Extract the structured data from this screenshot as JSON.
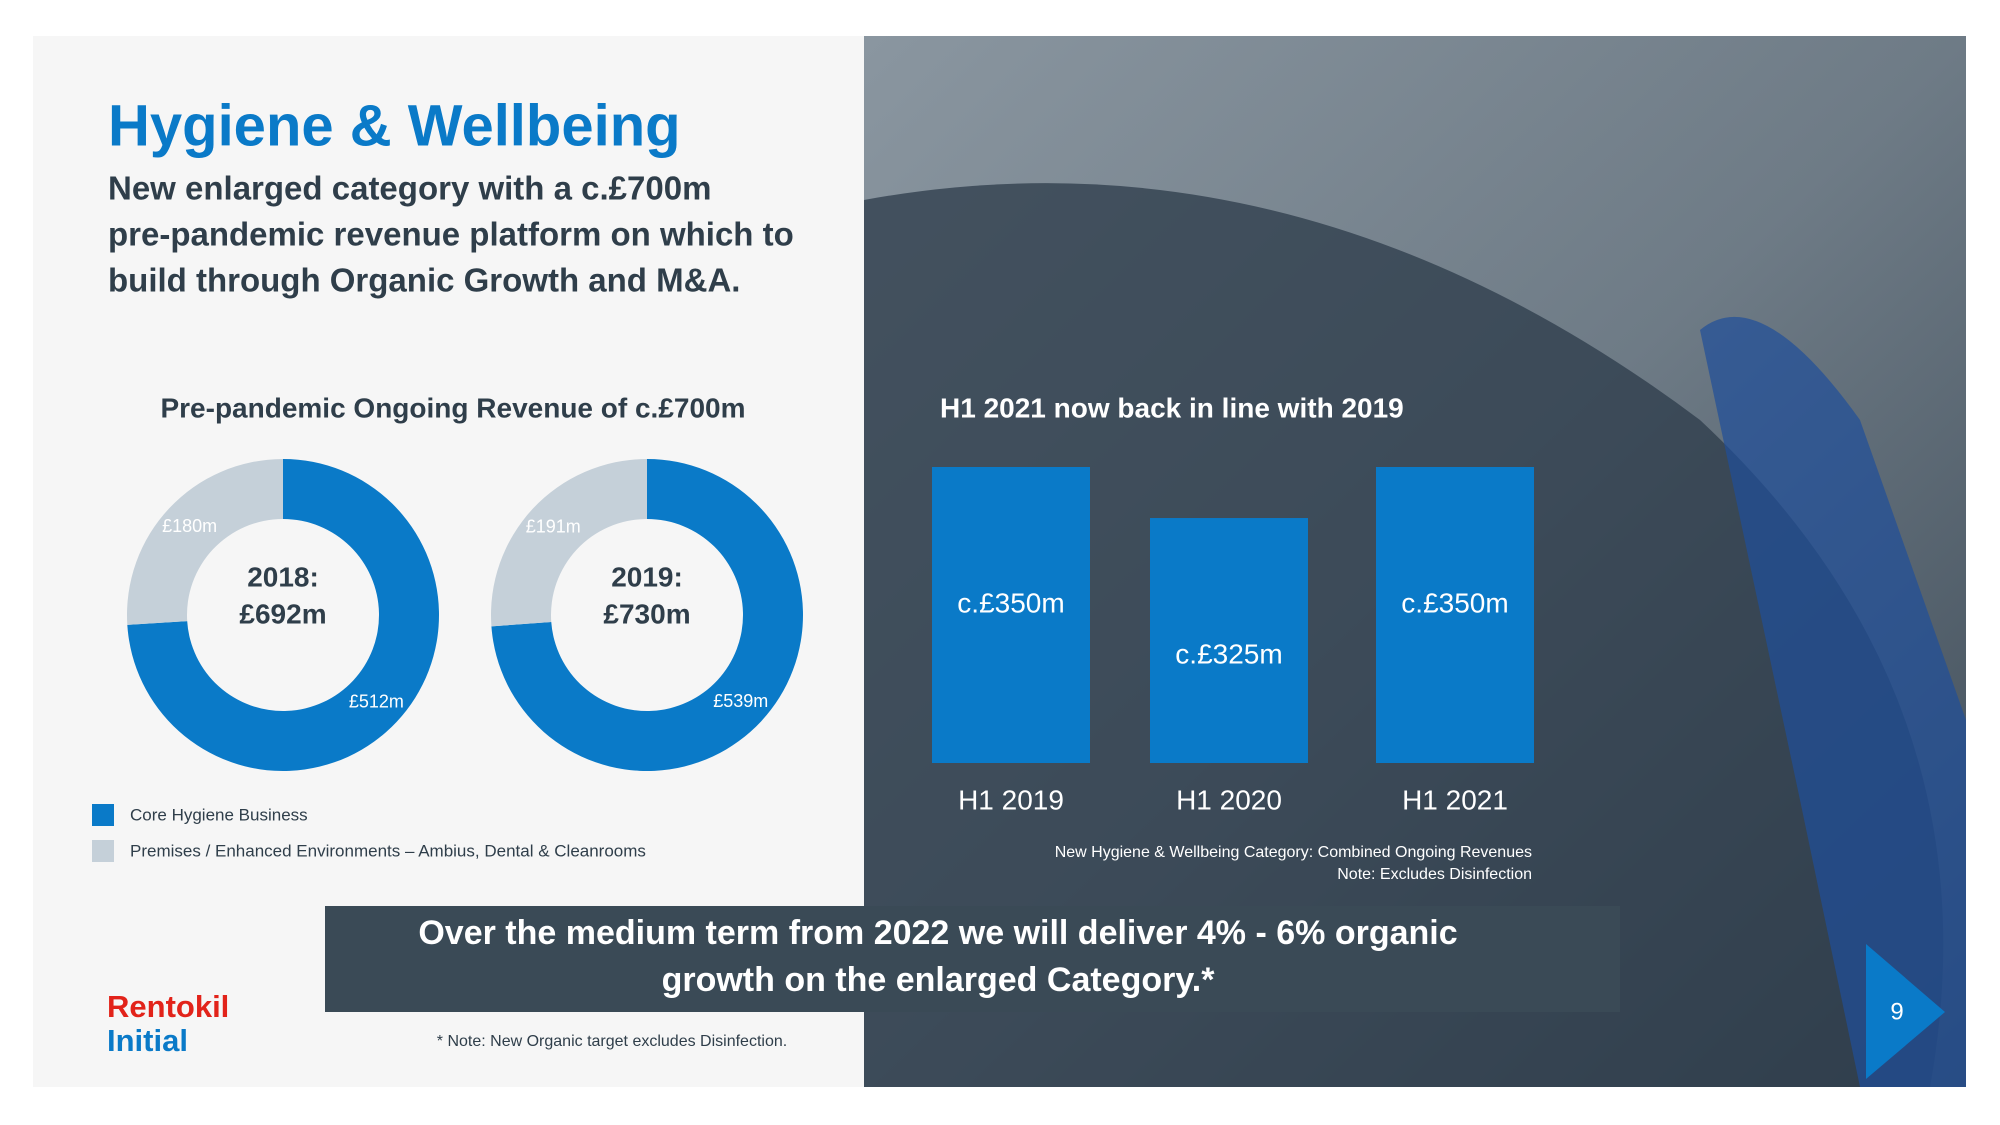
{
  "header": {
    "title": "Hygiene & Wellbeing",
    "subtitle_lines": [
      "New enlarged category with a c.£700m",
      "pre-pandemic revenue platform on which to",
      "build through Organic Growth and M&A."
    ]
  },
  "donut_title": "Pre-pandemic Ongoing Revenue of c.£700m",
  "legend": [
    {
      "name": "Core Hygiene Business",
      "color": "#0a7ac8"
    },
    {
      "name": "Premises / Enhanced Environments – Ambius, Dental & Cleanrooms",
      "color": "#c5d0d9"
    }
  ],
  "chart_data": [
    {
      "type": "donut",
      "center_lines": [
        "2018:",
        "£692m"
      ],
      "values": [
        512,
        180
      ],
      "value_labels": [
        "£512m",
        "£180m"
      ]
    },
    {
      "type": "donut",
      "center_lines": [
        "2019:",
        "£730m"
      ],
      "values": [
        539,
        191
      ],
      "value_labels": [
        "£539m",
        "£191m"
      ]
    },
    {
      "type": "bar",
      "title": "H1 2021 now back in line with 2019",
      "categories": [
        "H1 2019",
        "H1 2020",
        "H1 2021"
      ],
      "values": [
        350,
        325,
        350
      ],
      "value_labels": [
        "c.£350m",
        "c.£325m",
        "c.£350m"
      ],
      "color": "#0a7ac8",
      "ylim": [
        205,
        350
      ],
      "notes": [
        "New Hygiene & Wellbeing Category: Combined Ongoing Revenues",
        "Note: Excludes Disinfection"
      ]
    }
  ],
  "banner": {
    "lines": [
      "Over the medium term from 2022 we will deliver 4% - 6% organic",
      "growth on the enlarged Category.*"
    ]
  },
  "footnote": "* Note: New Organic target excludes Disinfection.",
  "logo": [
    "Rentokil",
    "Initial"
  ],
  "page_number": 9
}
